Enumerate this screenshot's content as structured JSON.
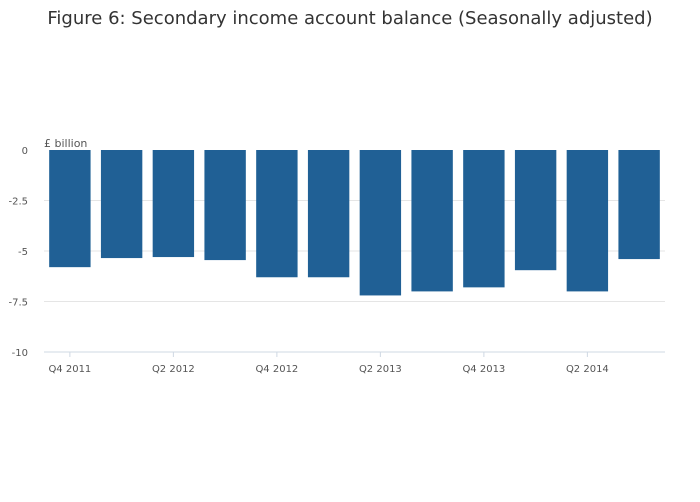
{
  "chart_data": {
    "type": "bar",
    "title": "Figure 6: Secondary income account balance (Seasonally adjusted)",
    "ylabel": "£ billion",
    "xlabel": "",
    "categories": [
      "Q4 2011",
      "Q1 2012",
      "Q2 2012",
      "Q3 2012",
      "Q4 2012",
      "Q1 2013",
      "Q2 2013",
      "Q3 2013",
      "Q4 2013",
      "Q1 2014",
      "Q2 2014",
      "Q3 2014"
    ],
    "x_tick_labels": [
      "Q4 2011",
      "Q2 2012",
      "Q4 2012",
      "Q2 2013",
      "Q4 2013",
      "Q2 2014"
    ],
    "values": [
      -5.8,
      -5.35,
      -5.3,
      -5.45,
      -6.3,
      -6.3,
      -7.2,
      -7.0,
      -6.8,
      -5.95,
      -7.0,
      -5.4
    ],
    "ylim": [
      -10,
      0
    ],
    "y_ticks": [
      0,
      -2.5,
      -5,
      -7.5,
      -10
    ],
    "y_tick_labels": [
      "0",
      "-2.5",
      "-5",
      "-7.5",
      "-10"
    ],
    "grid": true,
    "bar_color": "#206095"
  }
}
